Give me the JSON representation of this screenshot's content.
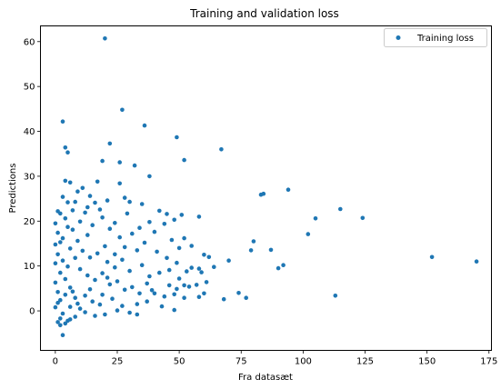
{
  "chart_data": {
    "type": "scatter",
    "title": "Training and validation loss",
    "xlabel": "Fra datasæt",
    "ylabel": "Predictions",
    "xlim": [
      -6,
      176
    ],
    "ylim": [
      -8.8,
      63.5
    ],
    "xticks": [
      0,
      25,
      50,
      75,
      100,
      125,
      150,
      175
    ],
    "yticks": [
      0,
      10,
      20,
      30,
      40,
      50,
      60
    ],
    "grid": false,
    "legend_position": "upper right",
    "series": [
      {
        "name": "Training loss",
        "color": "#1f77b4",
        "marker": "circle",
        "points": [
          [
            20,
            60.7
          ],
          [
            3,
            42.2
          ],
          [
            27,
            44.8
          ],
          [
            36,
            41.3
          ],
          [
            49,
            38.7
          ],
          [
            4,
            36.4
          ],
          [
            5,
            35.3
          ],
          [
            22,
            37.3
          ],
          [
            67,
            36
          ],
          [
            52,
            33.6
          ],
          [
            19,
            33.4
          ],
          [
            26,
            33.1
          ],
          [
            32,
            32.4
          ],
          [
            4,
            29
          ],
          [
            6,
            28.6
          ],
          [
            17,
            28.8
          ],
          [
            26,
            28.4
          ],
          [
            38,
            30
          ],
          [
            94,
            27
          ],
          [
            84,
            26.1
          ],
          [
            83,
            25.9
          ],
          [
            9,
            26.6
          ],
          [
            14,
            25.6
          ],
          [
            21,
            24.6
          ],
          [
            30,
            24.3
          ],
          [
            28,
            25.2
          ],
          [
            8,
            24.3
          ],
          [
            13,
            23.1
          ],
          [
            115,
            22.7
          ],
          [
            124,
            20.7
          ],
          [
            105,
            20.6
          ],
          [
            102,
            17.1
          ],
          [
            58,
            21
          ],
          [
            51,
            21.4
          ],
          [
            48,
            20.3
          ],
          [
            45,
            21.6
          ],
          [
            42,
            22.3
          ],
          [
            38,
            19.8
          ],
          [
            34,
            18.5
          ],
          [
            31,
            17.2
          ],
          [
            24,
            19.6
          ],
          [
            19,
            20.8
          ],
          [
            12,
            21.9
          ],
          [
            15,
            19.1
          ],
          [
            18,
            22.6
          ],
          [
            22,
            18.3
          ],
          [
            26,
            16.4
          ],
          [
            40,
            17.6
          ],
          [
            44,
            19.4
          ],
          [
            47,
            15.8
          ],
          [
            52,
            16.2
          ],
          [
            36,
            15.2
          ],
          [
            28,
            14.2
          ],
          [
            33,
            13.5
          ],
          [
            41,
            13.2
          ],
          [
            50,
            14
          ],
          [
            55,
            14.5
          ],
          [
            60,
            12.5
          ],
          [
            80,
            15.5
          ],
          [
            79,
            13.5
          ],
          [
            87,
            13.6
          ],
          [
            92,
            10.2
          ],
          [
            90,
            9.5
          ],
          [
            152,
            12
          ],
          [
            170,
            11
          ],
          [
            113,
            3.4
          ],
          [
            74,
            4
          ],
          [
            77,
            2.9
          ],
          [
            68,
            2.6
          ],
          [
            58,
            9.4
          ],
          [
            55,
            9.6
          ],
          [
            53,
            8.8
          ],
          [
            59,
            8.6
          ],
          [
            61,
            6.4
          ],
          [
            57,
            5.8
          ],
          [
            54,
            5.4
          ],
          [
            52,
            5.7
          ],
          [
            49,
            4.9
          ],
          [
            46,
            5.7
          ],
          [
            48,
            3.7
          ],
          [
            44,
            3.2
          ],
          [
            40,
            3.9
          ],
          [
            37,
            2.1
          ],
          [
            33,
            1.5
          ],
          [
            43,
            1
          ],
          [
            48,
            0.2
          ],
          [
            52,
            2.9
          ],
          [
            58,
            3.1
          ],
          [
            60,
            3.9
          ],
          [
            30,
            -0.4
          ],
          [
            25,
            0.1
          ],
          [
            20,
            -0.8
          ],
          [
            16,
            -1.1
          ],
          [
            33,
            -0.8
          ],
          [
            3,
            -5.4
          ],
          [
            2,
            -3.2
          ],
          [
            1,
            -2.5
          ],
          [
            4,
            -2.8
          ],
          [
            6,
            -1.9
          ],
          [
            1,
            22.2
          ],
          [
            2,
            21.7
          ],
          [
            0,
            19.5
          ],
          [
            1,
            17.4
          ],
          [
            3,
            16.2
          ],
          [
            0,
            14.8
          ],
          [
            7,
            18.1
          ],
          [
            9,
            15.6
          ],
          [
            11,
            13.4
          ],
          [
            14,
            11.9
          ],
          [
            17,
            12.8
          ],
          [
            21,
            10.9
          ],
          [
            24,
            9.7
          ],
          [
            27,
            11.4
          ],
          [
            30,
            8.9
          ],
          [
            35,
            10.2
          ],
          [
            38,
            7.7
          ],
          [
            42,
            8.5
          ],
          [
            46,
            9.1
          ],
          [
            50,
            7.2
          ],
          [
            8,
            11.8
          ],
          [
            10,
            9.3
          ],
          [
            13,
            7.9
          ],
          [
            16,
            6.9
          ],
          [
            19,
            8.4
          ],
          [
            22,
            5.9
          ],
          [
            25,
            6.6
          ],
          [
            28,
            4.7
          ],
          [
            31,
            5.3
          ],
          [
            34,
            3.9
          ],
          [
            37,
            6.1
          ],
          [
            23,
            2.7
          ],
          [
            19,
            3.6
          ],
          [
            15,
            2.1
          ],
          [
            12,
            3.4
          ],
          [
            9,
            1.6
          ],
          [
            7,
            4.3
          ],
          [
            27,
            1.1
          ],
          [
            39,
            4.6
          ],
          [
            62,
            12
          ],
          [
            64,
            9.8
          ],
          [
            70,
            11.2
          ],
          [
            45,
            11.8
          ],
          [
            49,
            10.7
          ],
          [
            29,
            21.7
          ],
          [
            16,
            24.1
          ],
          [
            11,
            27.4
          ],
          [
            35,
            23.8
          ],
          [
            4,
            20.6
          ],
          [
            5,
            18.7
          ],
          [
            6,
            13.9
          ],
          [
            3,
            11.2
          ],
          [
            2,
            8.5
          ],
          [
            0,
            6.3
          ],
          [
            1,
            4.2
          ],
          [
            2,
            2.4
          ],
          [
            0,
            0.8
          ],
          [
            3,
            -0.6
          ],
          [
            1,
            12.6
          ],
          [
            5,
            9.9
          ],
          [
            4,
            7.1
          ],
          [
            6,
            5.2
          ],
          [
            8,
            2.9
          ],
          [
            10,
            0.5
          ],
          [
            12,
            -0.3
          ],
          [
            14,
            4.8
          ],
          [
            18,
            1.4
          ],
          [
            21,
            7.4
          ],
          [
            24,
            12.6
          ],
          [
            20,
            14.4
          ],
          [
            10,
            19.9
          ],
          [
            7,
            22.4
          ],
          [
            13,
            16.9
          ],
          [
            3,
            25.4
          ],
          [
            5,
            24.2
          ],
          [
            2,
            15.3
          ],
          [
            0,
            10.6
          ],
          [
            1,
            1.8
          ],
          [
            4,
            3.6
          ],
          [
            6,
            0.9
          ],
          [
            2,
            -1.7
          ],
          [
            5,
            -2.2
          ],
          [
            8,
            -1.3
          ]
        ]
      }
    ]
  }
}
